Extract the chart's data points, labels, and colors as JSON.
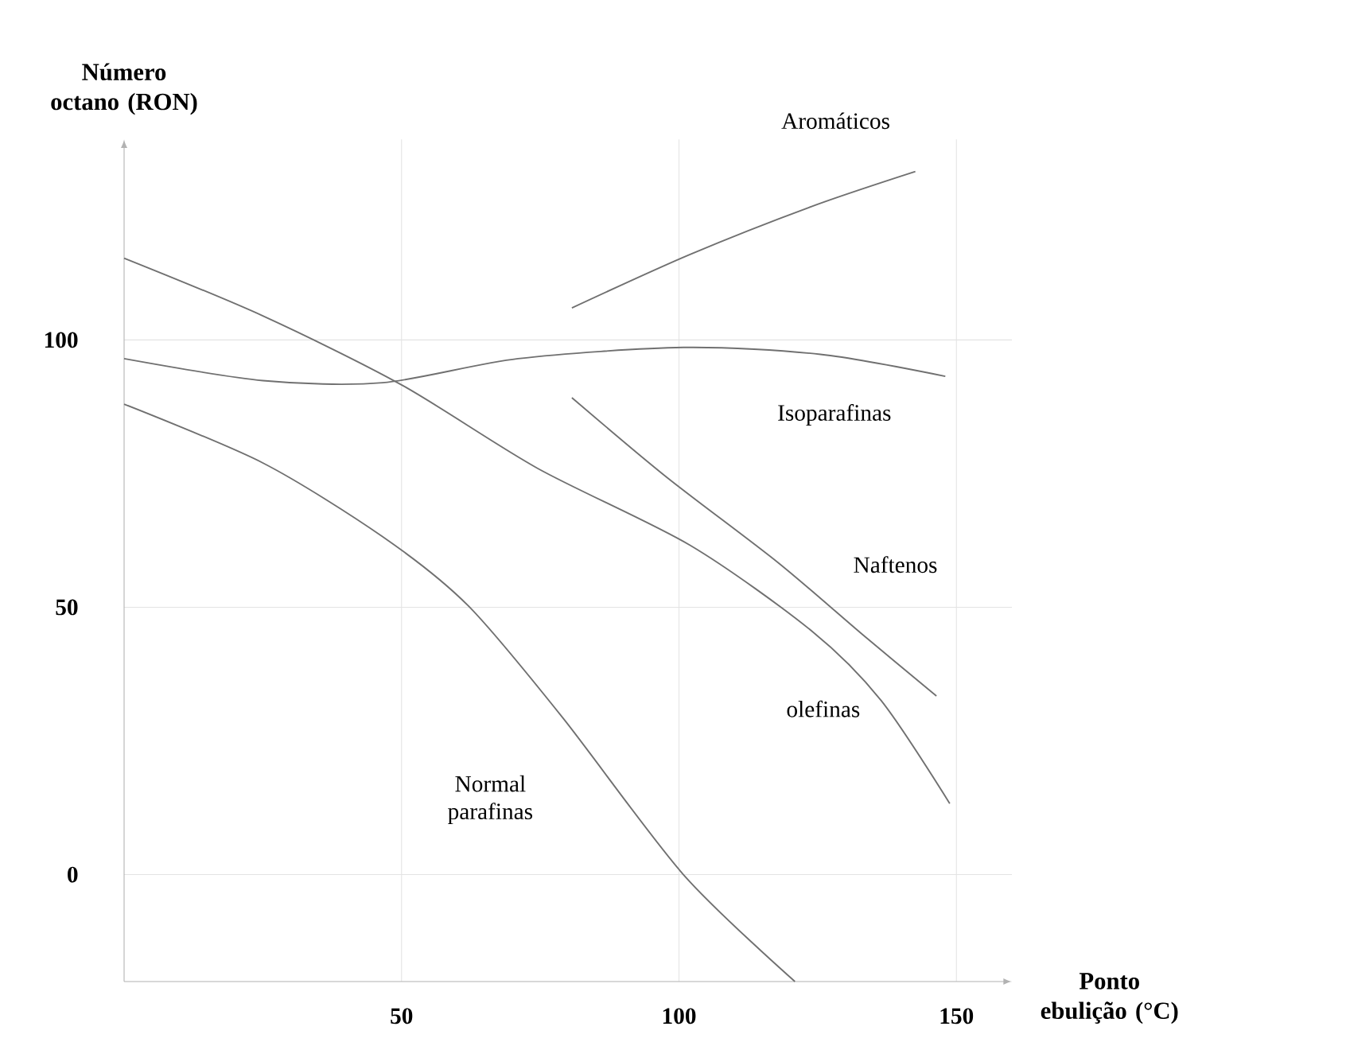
{
  "chart_data": {
    "type": "line",
    "xlabel": "Ponto ebulição (°C)",
    "ylabel": "Número octano (RON)",
    "xlim": [
      0,
      160
    ],
    "ylim": [
      -20,
      137.5
    ],
    "xticks": [
      50,
      100,
      150
    ],
    "yticks": [
      0,
      50,
      100
    ],
    "grid": true,
    "legend": false,
    "marker": "none",
    "line_style": "solid",
    "series": [
      {
        "name": "Aromáticos",
        "color": "#707070",
        "x": [
          80.7,
          102,
          124,
          142.6
        ],
        "values": [
          106,
          116,
          125,
          131.5
        ]
      },
      {
        "name": "Isoparafinas",
        "color": "#707070",
        "x": [
          0,
          25,
          46.6,
          71,
          100.8,
          125.5,
          148
        ],
        "values": [
          96.5,
          92.4,
          92,
          96.5,
          98.6,
          97.3,
          93.2
        ]
      },
      {
        "name": "Naftenos",
        "color": "#707070",
        "x": [
          80.7,
          97.7,
          117.8,
          133.3,
          146.4
        ],
        "values": [
          89.2,
          74.4,
          58.4,
          44.7,
          33.4
        ]
      },
      {
        "name": "olefinas",
        "color": "#707070",
        "x": [
          0,
          25,
          50,
          74.5,
          102,
          124,
          136.4,
          148.8
        ],
        "values": [
          115.3,
          104.5,
          91.6,
          76,
          61.6,
          45.5,
          32.6,
          13.3
        ]
      },
      {
        "name": "Normal parafinas",
        "color": "#707070",
        "x": [
          0,
          25,
          46.6,
          62,
          79,
          100.8,
          120.9
        ],
        "values": [
          88,
          77,
          63.2,
          50.3,
          29.4,
          0,
          -20
        ]
      }
    ]
  }
}
